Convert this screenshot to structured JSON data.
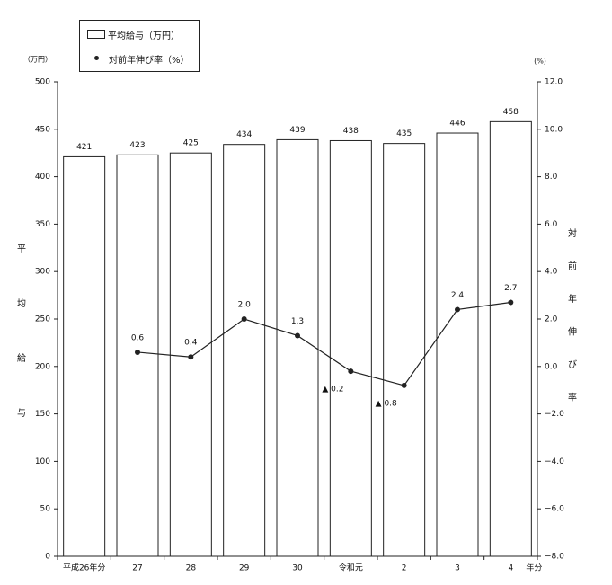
{
  "chart_data": {
    "type": "bar+line",
    "categories": [
      "平成26年分",
      "27",
      "28",
      "29",
      "30",
      "令和元",
      "2",
      "3",
      "4"
    ],
    "x_suffix": "年分",
    "series": [
      {
        "name": "平均給与（万円）",
        "type": "bar",
        "axis": "left",
        "values": [
          421,
          423,
          425,
          434,
          439,
          438,
          435,
          446,
          458
        ],
        "labels": [
          "421",
          "423",
          "425",
          "434",
          "439",
          "438",
          "435",
          "446",
          "458"
        ]
      },
      {
        "name": "対前年伸び率（%）",
        "type": "line",
        "axis": "right",
        "values": [
          null,
          0.6,
          0.4,
          2.0,
          1.3,
          -0.2,
          -0.8,
          2.4,
          2.7
        ],
        "labels": [
          "",
          "0.6",
          "0.4",
          "2.0",
          "1.3",
          "▲ 0.2",
          "▲ 0.8",
          "2.4",
          "2.7"
        ]
      }
    ],
    "y_left": {
      "unit": "（万円）",
      "label_chars": [
        "平",
        "均",
        "給",
        "与"
      ],
      "min": 0,
      "max": 500,
      "step": 50,
      "ticks": [
        "0",
        "50",
        "100",
        "150",
        "200",
        "250",
        "300",
        "350",
        "400",
        "450",
        "500"
      ]
    },
    "y_right": {
      "unit": "(%)",
      "label_chars": [
        "対",
        "前",
        "年",
        "伸",
        "び",
        "率"
      ],
      "min": -8,
      "max": 12,
      "step": 2,
      "ticks": [
        "−8.0",
        "−6.0",
        "−4.0",
        "−2.0",
        "0.0",
        "2.0",
        "4.0",
        "6.0",
        "8.0",
        "10.0",
        "12.0"
      ]
    },
    "grid": false,
    "legend_position": "top-left"
  }
}
